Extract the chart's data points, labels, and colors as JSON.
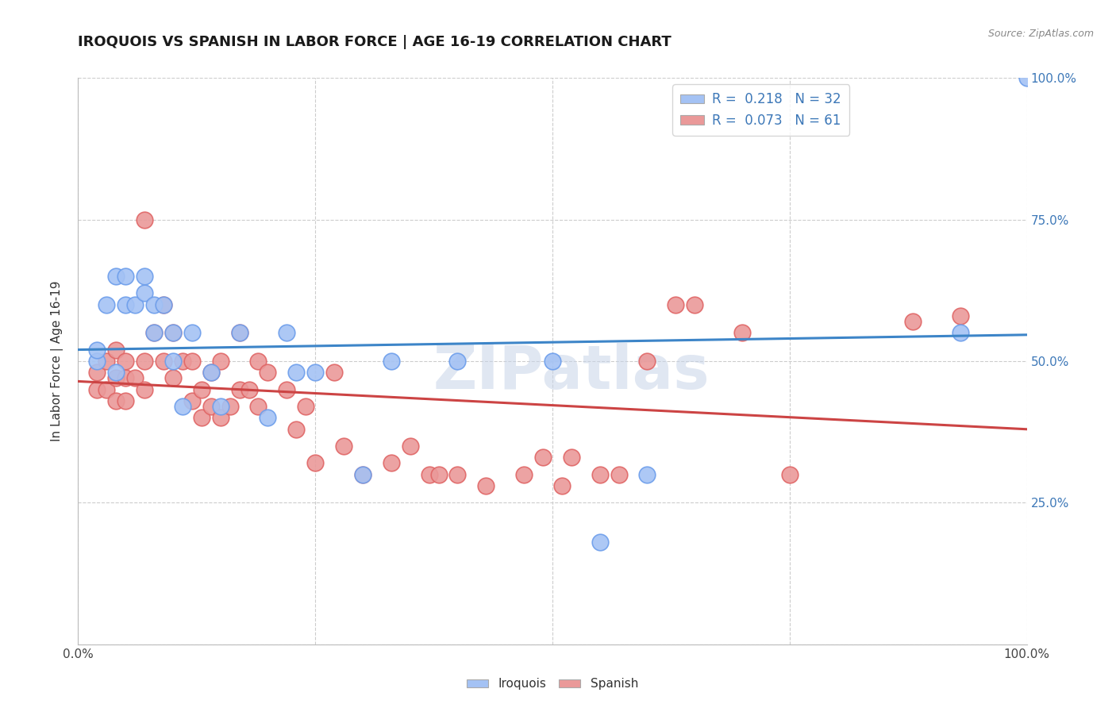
{
  "title": "IROQUOIS VS SPANISH IN LABOR FORCE | AGE 16-19 CORRELATION CHART",
  "source": "Source: ZipAtlas.com",
  "ylabel": "In Labor Force | Age 16-19",
  "xlim": [
    0.0,
    1.0
  ],
  "ylim": [
    0.0,
    1.0
  ],
  "iroquois_color": "#a4c2f4",
  "iroquois_edge": "#6d9eeb",
  "spanish_color": "#ea9999",
  "spanish_edge": "#e06666",
  "iroquois_R": 0.218,
  "iroquois_N": 32,
  "spanish_R": 0.073,
  "spanish_N": 61,
  "legend_blue_fill": "#a4c2f4",
  "legend_pink_fill": "#ea9999",
  "grid_color": "#cccccc",
  "watermark": "ZIPatlas",
  "blue_line_color": "#3d85c8",
  "pink_line_color": "#cc4444",
  "right_tick_color": "#3d78b8",
  "iroquois_x": [
    0.02,
    0.02,
    0.03,
    0.04,
    0.04,
    0.05,
    0.05,
    0.06,
    0.07,
    0.07,
    0.08,
    0.08,
    0.09,
    0.1,
    0.1,
    0.11,
    0.12,
    0.14,
    0.15,
    0.17,
    0.2,
    0.22,
    0.23,
    0.25,
    0.3,
    0.33,
    0.4,
    0.5,
    0.55,
    0.6,
    0.93,
    1.0
  ],
  "iroquois_y": [
    0.5,
    0.52,
    0.6,
    0.48,
    0.65,
    0.6,
    0.65,
    0.6,
    0.62,
    0.65,
    0.55,
    0.6,
    0.6,
    0.5,
    0.55,
    0.42,
    0.55,
    0.48,
    0.42,
    0.55,
    0.4,
    0.55,
    0.48,
    0.48,
    0.3,
    0.5,
    0.5,
    0.5,
    0.18,
    0.3,
    0.55,
    1.0
  ],
  "spanish_x": [
    0.02,
    0.02,
    0.03,
    0.03,
    0.04,
    0.04,
    0.04,
    0.05,
    0.05,
    0.05,
    0.06,
    0.07,
    0.07,
    0.07,
    0.08,
    0.09,
    0.09,
    0.1,
    0.1,
    0.11,
    0.12,
    0.12,
    0.13,
    0.13,
    0.14,
    0.14,
    0.15,
    0.15,
    0.16,
    0.17,
    0.17,
    0.18,
    0.19,
    0.19,
    0.2,
    0.22,
    0.23,
    0.24,
    0.25,
    0.27,
    0.28,
    0.3,
    0.33,
    0.35,
    0.37,
    0.38,
    0.4,
    0.43,
    0.47,
    0.49,
    0.51,
    0.52,
    0.55,
    0.57,
    0.6,
    0.63,
    0.65,
    0.7,
    0.75,
    0.88,
    0.93
  ],
  "spanish_y": [
    0.45,
    0.48,
    0.45,
    0.5,
    0.43,
    0.47,
    0.52,
    0.43,
    0.47,
    0.5,
    0.47,
    0.45,
    0.5,
    0.75,
    0.55,
    0.5,
    0.6,
    0.47,
    0.55,
    0.5,
    0.43,
    0.5,
    0.4,
    0.45,
    0.42,
    0.48,
    0.4,
    0.5,
    0.42,
    0.45,
    0.55,
    0.45,
    0.42,
    0.5,
    0.48,
    0.45,
    0.38,
    0.42,
    0.32,
    0.48,
    0.35,
    0.3,
    0.32,
    0.35,
    0.3,
    0.3,
    0.3,
    0.28,
    0.3,
    0.33,
    0.28,
    0.33,
    0.3,
    0.3,
    0.5,
    0.6,
    0.6,
    0.55,
    0.3,
    0.57,
    0.58
  ]
}
